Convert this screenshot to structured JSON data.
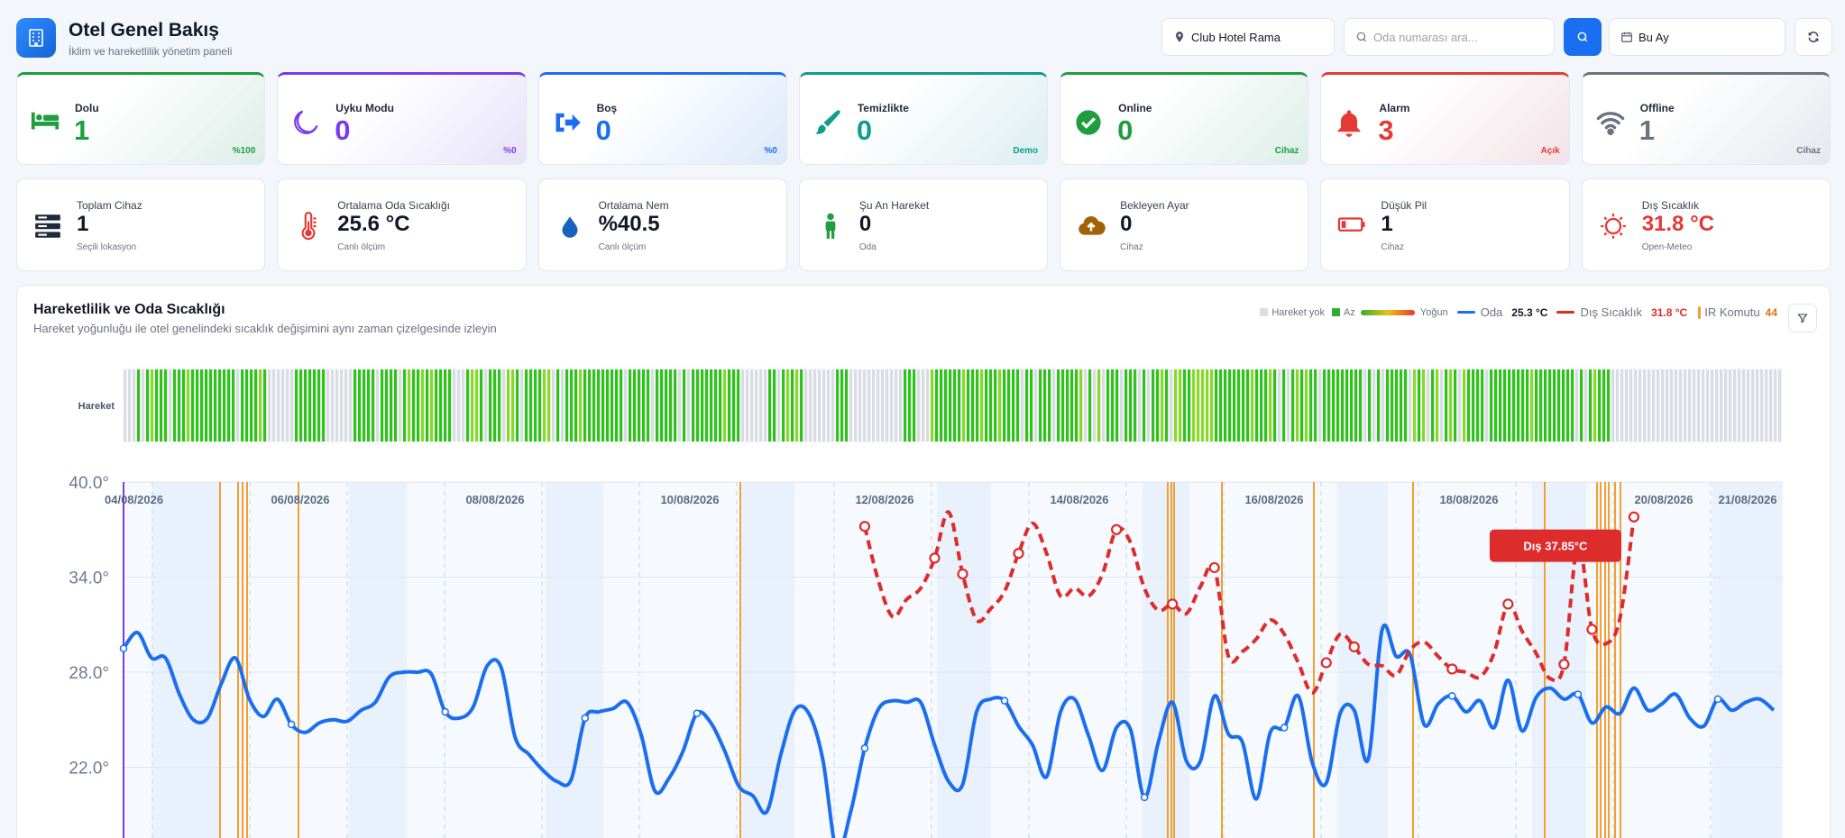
{
  "header": {
    "title": "Otel Genel Bakış",
    "subtitle": "İklim ve hareketlilik yönetim paneli",
    "hotel_select": "Club Hotel Rama",
    "search_placeholder": "Oda numarası ara...",
    "period_select": "Bu Ay"
  },
  "status_cards": [
    {
      "label": "Dolu",
      "value": "1",
      "corner": "%100",
      "color": "#1e9e3e",
      "icon": "bed-icon"
    },
    {
      "label": "Uyku Modu",
      "value": "0",
      "corner": "%0",
      "color": "#7c3aed",
      "icon": "moon-icon"
    },
    {
      "label": "Boş",
      "value": "0",
      "corner": "%0",
      "color": "#1a6ef0",
      "icon": "door-exit-icon"
    },
    {
      "label": "Temizlikte",
      "value": "0",
      "corner": "Demo",
      "color": "#0f9d8f",
      "icon": "brush-icon"
    },
    {
      "label": "Online",
      "value": "0",
      "corner": "Cihaz",
      "color": "#1e9e3e",
      "icon": "check-circle-icon"
    },
    {
      "label": "Alarm",
      "value": "3",
      "corner": "Açık",
      "color": "#e53935",
      "icon": "bell-icon"
    },
    {
      "label": "Offline",
      "value": "1",
      "corner": "Cihaz",
      "color": "#6b7280",
      "icon": "wifi-icon"
    }
  ],
  "metric_cards": [
    {
      "label": "Toplam Cihaz",
      "value": "1",
      "sub": "Seçili lokasyon",
      "icon": "server-icon"
    },
    {
      "label": "Ortalama Oda Sıcaklığı",
      "value": "25.6 °C",
      "sub": "Canlı ölçüm",
      "icon": "thermometer-icon"
    },
    {
      "label": "Ortalama Nem",
      "value": "%40.5",
      "sub": "Canlı ölçüm",
      "icon": "droplet-icon"
    },
    {
      "label": "Şu An Hareket",
      "value": "0",
      "sub": "Oda",
      "icon": "person-icon"
    },
    {
      "label": "Bekleyen Ayar",
      "value": "0",
      "sub": "Cihaz",
      "icon": "cloud-upload-icon"
    },
    {
      "label": "Düşük Pil",
      "value": "1",
      "sub": "Cihaz",
      "icon": "battery-low-icon"
    },
    {
      "label": "Dış Sıcaklık",
      "value": "31.8 °C",
      "sub": "Open-Meteo",
      "icon": "sun-icon",
      "value_color": "#e53935"
    }
  ],
  "panel": {
    "title": "Hareketlilik ve Oda Sıcaklığı",
    "subtitle": "Hareket yoğunluğu ile otel genelindeki sıcaklık değişimini aynı zaman çizelgesinde izleyin",
    "legend": {
      "no_motion": "Hareket yok",
      "low": "Az",
      "high": "Yoğun",
      "room_label": "Oda",
      "room_value": "25.3 °C",
      "outdoor_label": "Dış Sıcaklık",
      "outdoor_value": "31.8 °C",
      "ir_label": "IR Komutu",
      "ir_value": "44"
    }
  },
  "chart_data": {
    "type": "line",
    "motion_row_label": "Hareket",
    "x_labels": [
      "04/08/2026",
      "06/08/2026",
      "08/08/2026",
      "10/08/2026",
      "12/08/2026",
      "14/08/2026",
      "16/08/2026",
      "18/08/2026",
      "20/08/2026",
      "21/08/2026"
    ],
    "y_ticks": [
      "40.0°",
      "34.0°",
      "28.0°",
      "22.0°"
    ],
    "ylim": [
      16,
      40
    ],
    "tooltip": "Dış 37.85°C",
    "series": [
      {
        "name": "Oda",
        "color": "#1a6ef0",
        "values": [
          29.5,
          30.5,
          28.9,
          28.9,
          26.6,
          25.0,
          25.1,
          27.3,
          28.9,
          26.3,
          25.2,
          26.3,
          24.7,
          24.2,
          24.8,
          25.0,
          24.9,
          25.6,
          26.1,
          27.7,
          28.0,
          28.0,
          27.9,
          25.5,
          25.1,
          25.8,
          28.4,
          28.3,
          23.9,
          22.8,
          21.8,
          21.1,
          21.2,
          25.1,
          25.5,
          25.7,
          26.1,
          24.1,
          20.5,
          21.3,
          23.0,
          25.4,
          24.8,
          23.0,
          20.8,
          20.2,
          19.2,
          22.8,
          25.6,
          25.4,
          22.5,
          16.7,
          19.2,
          23.2,
          25.7,
          26.2,
          26.1,
          26.1,
          23.4,
          21.1,
          20.9,
          25.5,
          26.3,
          26.2,
          24.6,
          23.4,
          21.4,
          25.5,
          26.3,
          24.0,
          21.8,
          24.5,
          24.4,
          20.1,
          23.6,
          26.1,
          22.4,
          22.4,
          26.5,
          24.1,
          23.6,
          20.0,
          24.2,
          24.5,
          26.5,
          22.3,
          21.0,
          25.4,
          25.6,
          22.5,
          30.7,
          29.0,
          29.1,
          24.7,
          26.0,
          26.5,
          25.5,
          26.2,
          24.5,
          27.5,
          24.3,
          26.4,
          27.0,
          26.3,
          26.6,
          24.8,
          25.8,
          25.4,
          27.0,
          25.6,
          26.0,
          26.6,
          25.1,
          24.6,
          26.3,
          25.6,
          26.1,
          26.3,
          25.6
        ]
      },
      {
        "name": "Dış Sıcaklık",
        "color": "#dd2c2c",
        "values_start_index": 53,
        "values": [
          37.2,
          33.7,
          31.5,
          32.6,
          33.3,
          35.2,
          38.1,
          34.2,
          31.3,
          32.0,
          33.1,
          35.5,
          37.4,
          35.5,
          32.8,
          33.3,
          32.8,
          34.2,
          37.0,
          36.2,
          33.3,
          31.9,
          32.3,
          31.7,
          33.4,
          34.6,
          29.0,
          29.3,
          30.1,
          31.3,
          30.4,
          28.6,
          26.7,
          28.6,
          30.4,
          29.6,
          28.5,
          28.4,
          27.8,
          29.4,
          29.9,
          29.0,
          28.2,
          28.0,
          27.7,
          29.2,
          32.3,
          30.6,
          29.2,
          27.6,
          28.5,
          36.1,
          30.7,
          29.8,
          31.4,
          37.8
        ]
      }
    ]
  }
}
